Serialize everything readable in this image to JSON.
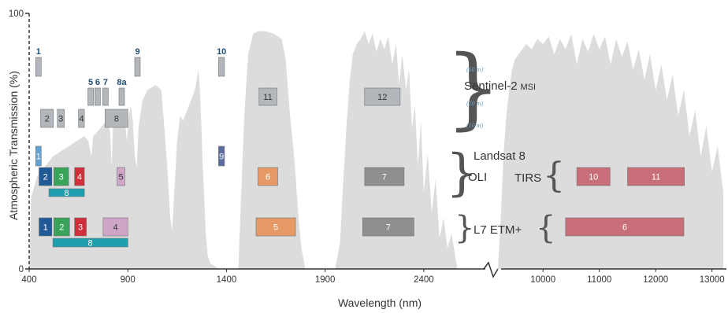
{
  "chart_data": {
    "type": "bar",
    "ylabel": "Atmospheric Transmission (%)",
    "xlabel": "Wavelength (nm)",
    "yticks": [
      "0",
      "100"
    ],
    "ylim": [
      0,
      100
    ],
    "xticks_left": [
      "400",
      "900",
      "1400",
      "1900",
      "2400"
    ],
    "xticks_right": [
      "10000",
      "11000",
      "12000",
      "13000"
    ],
    "xrange_left": [
      400,
      2600
    ],
    "xrange_right": [
      9200,
      13200
    ],
    "transmission_note": "gray filled atmospheric transmission spectrum in background",
    "sensors": {
      "sentinel": {
        "name": "Sentinel-2",
        "suffix": "MSI",
        "resolutions": [
          "(60 m)",
          "(20 m)",
          "(10 m)"
        ]
      },
      "landsat8": {
        "name": "Landsat 8",
        "oli": "OLI",
        "tirs": "TIRS"
      },
      "l7": {
        "name": "L7 ETM+"
      }
    },
    "bands": [
      {
        "sensor": "Sentinel-2 MSI",
        "label": "1",
        "start": 433,
        "end": 453,
        "row": "s60",
        "color": "#b3b7bb",
        "numberAbove": true
      },
      {
        "sensor": "Sentinel-2 MSI",
        "label": "9",
        "start": 935,
        "end": 955,
        "row": "s60",
        "color": "#b3b7bb",
        "numberAbove": true
      },
      {
        "sensor": "Sentinel-2 MSI",
        "label": "10",
        "start": 1360,
        "end": 1390,
        "row": "s60",
        "color": "#b3b7bb",
        "numberAbove": true
      },
      {
        "sensor": "Sentinel-2 MSI",
        "label": "5",
        "start": 698,
        "end": 713,
        "row": "s20",
        "color": "#b3b7bb",
        "numberAbove": true
      },
      {
        "sensor": "Sentinel-2 MSI",
        "label": "6",
        "start": 733,
        "end": 748,
        "row": "s20",
        "color": "#b3b7bb",
        "numberAbove": true
      },
      {
        "sensor": "Sentinel-2 MSI",
        "label": "7",
        "start": 773,
        "end": 793,
        "row": "s20",
        "color": "#b3b7bb",
        "numberAbove": true
      },
      {
        "sensor": "Sentinel-2 MSI",
        "label": "8a",
        "start": 855,
        "end": 875,
        "row": "s20",
        "color": "#b3b7bb",
        "numberAbove": true
      },
      {
        "sensor": "Sentinel-2 MSI",
        "label": "11",
        "start": 1565,
        "end": 1655,
        "row": "s20",
        "color": "#b3b7bb",
        "numberAbove": false
      },
      {
        "sensor": "Sentinel-2 MSI",
        "label": "12",
        "start": 2100,
        "end": 2280,
        "row": "s20",
        "color": "#b3b7bb",
        "numberAbove": false
      },
      {
        "sensor": "Sentinel-2 MSI",
        "label": "2",
        "start": 458,
        "end": 523,
        "row": "s10",
        "color": "#b3b7bb",
        "numberAbove": false
      },
      {
        "sensor": "Sentinel-2 MSI",
        "label": "3",
        "start": 543,
        "end": 578,
        "row": "s10",
        "color": "#b3b7bb",
        "numberAbove": false
      },
      {
        "sensor": "Sentinel-2 MSI",
        "label": "4",
        "start": 650,
        "end": 680,
        "row": "s10",
        "color": "#b3b7bb",
        "numberAbove": false
      },
      {
        "sensor": "Sentinel-2 MSI",
        "label": "8",
        "start": 785,
        "end": 900,
        "row": "s10",
        "color": "#b3b7bb",
        "numberAbove": false
      },
      {
        "sensor": "Landsat 8 OLI",
        "label": "1",
        "start": 433,
        "end": 453,
        "row": "l8a",
        "color": "#5fa3d4",
        "numberAbove": false
      },
      {
        "sensor": "Landsat 8 OLI",
        "label": "9",
        "start": 1360,
        "end": 1390,
        "row": "l8a",
        "color": "#5b6b9e",
        "numberAbove": false
      },
      {
        "sensor": "Landsat 8 OLI",
        "label": "2",
        "start": 450,
        "end": 515,
        "row": "l8b",
        "color": "#1f5a96",
        "numberAbove": false
      },
      {
        "sensor": "Landsat 8 OLI",
        "label": "3",
        "start": 525,
        "end": 600,
        "row": "l8b",
        "color": "#3aa35a",
        "numberAbove": false
      },
      {
        "sensor": "Landsat 8 OLI",
        "label": "4",
        "start": 630,
        "end": 680,
        "row": "l8b",
        "color": "#cf2e3a",
        "numberAbove": false
      },
      {
        "sensor": "Landsat 8 OLI",
        "label": "5",
        "start": 845,
        "end": 885,
        "row": "l8b",
        "color": "#cfa6c8",
        "numberAbove": false
      },
      {
        "sensor": "Landsat 8 OLI",
        "label": "6",
        "start": 1560,
        "end": 1660,
        "row": "l8b",
        "color": "#e59a66",
        "numberAbove": false
      },
      {
        "sensor": "Landsat 8 OLI",
        "label": "7",
        "start": 2100,
        "end": 2300,
        "row": "l8b",
        "color": "#8d908e",
        "numberAbove": false
      },
      {
        "sensor": "Landsat 8 OLI",
        "label": "8",
        "start": 500,
        "end": 680,
        "row": "l8c",
        "color": "#1d9fae",
        "numberAbove": false
      },
      {
        "sensor": "L7 ETM+",
        "label": "1",
        "start": 450,
        "end": 515,
        "row": "l7a",
        "color": "#1f5a96",
        "numberAbove": false
      },
      {
        "sensor": "L7 ETM+",
        "label": "2",
        "start": 525,
        "end": 605,
        "row": "l7a",
        "color": "#3aa35a",
        "numberAbove": false
      },
      {
        "sensor": "L7 ETM+",
        "label": "3",
        "start": 630,
        "end": 690,
        "row": "l7a",
        "color": "#cf2e3a",
        "numberAbove": false
      },
      {
        "sensor": "L7 ETM+",
        "label": "4",
        "start": 775,
        "end": 900,
        "row": "l7a",
        "color": "#cfa6c8",
        "numberAbove": false
      },
      {
        "sensor": "L7 ETM+",
        "label": "5",
        "start": 1550,
        "end": 1750,
        "row": "l7a",
        "color": "#e59a66",
        "numberAbove": false
      },
      {
        "sensor": "L7 ETM+",
        "label": "7",
        "start": 2090,
        "end": 2350,
        "row": "l7a",
        "color": "#8d908e",
        "numberAbove": false
      },
      {
        "sensor": "L7 ETM+",
        "label": "8",
        "start": 520,
        "end": 900,
        "row": "l7b",
        "color": "#1d9fae",
        "numberAbove": false
      },
      {
        "sensor": "Landsat 8 TIRS",
        "label": "10",
        "start": 10600,
        "end": 11190,
        "row": "l8b",
        "color": "#c86e78",
        "numberAbove": false
      },
      {
        "sensor": "Landsat 8 TIRS",
        "label": "11",
        "start": 11500,
        "end": 12510,
        "row": "l8b",
        "color": "#c86e78",
        "numberAbove": false
      },
      {
        "sensor": "L7 ETM+",
        "label": "6",
        "start": 10400,
        "end": 12500,
        "row": "l7a",
        "color": "#c86e78",
        "numberAbove": false
      }
    ]
  }
}
